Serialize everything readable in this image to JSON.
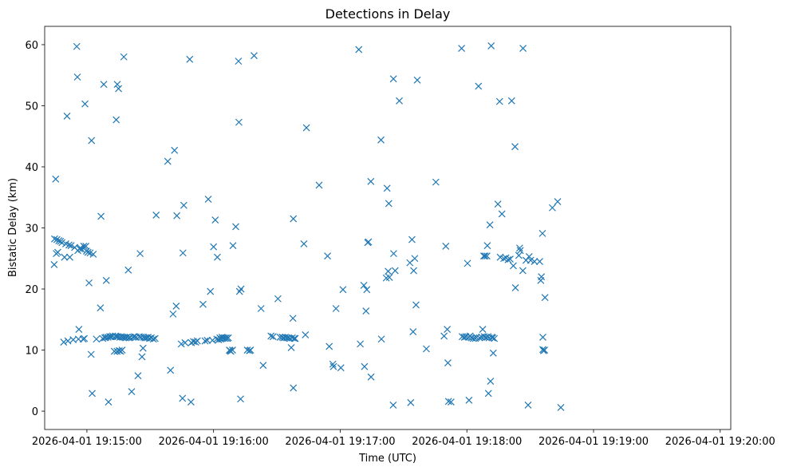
{
  "chart_data": {
    "type": "scatter",
    "title": "Detections in Delay",
    "xlabel": "Time (UTC)",
    "ylabel": "Bistatic Delay (km)",
    "marker": "x",
    "marker_color": "#1f77b4",
    "x_unit": "seconds after 2026-04-01 19:15:00",
    "xlim": [
      -20,
      305
    ],
    "ylim": [
      -3,
      63
    ],
    "xticks": [
      {
        "value": 0,
        "label": "2026-04-01 19:15:00"
      },
      {
        "value": 60,
        "label": "2026-04-01 19:16:00"
      },
      {
        "value": 120,
        "label": "2026-04-01 19:17:00"
      },
      {
        "value": 180,
        "label": "2026-04-01 19:18:00"
      },
      {
        "value": 240,
        "label": "2026-04-01 19:19:00"
      },
      {
        "value": 300,
        "label": "2026-04-01 19:20:00"
      }
    ],
    "yticks": [
      {
        "value": 0,
        "label": "0"
      },
      {
        "value": 10,
        "label": "10"
      },
      {
        "value": 20,
        "label": "20"
      },
      {
        "value": 30,
        "label": "30"
      },
      {
        "value": 40,
        "label": "40"
      },
      {
        "value": 50,
        "label": "50"
      },
      {
        "value": 60,
        "label": "60"
      }
    ],
    "points": [
      [
        -15.5,
        24
      ],
      [
        -15.3,
        28.2
      ],
      [
        -14.8,
        38
      ],
      [
        -14.5,
        25.8
      ],
      [
        -14.2,
        28.1
      ],
      [
        -13.8,
        26
      ],
      [
        -13.3,
        27.9
      ],
      [
        -12.5,
        27.8
      ],
      [
        -11.8,
        27.6
      ],
      [
        -11,
        11.3
      ],
      [
        -10.6,
        25.2
      ],
      [
        -10,
        27.4
      ],
      [
        -9.4,
        48.3
      ],
      [
        -9,
        11.5
      ],
      [
        -8.5,
        27.2
      ],
      [
        -8.1,
        25.2
      ],
      [
        -7.5,
        27.1
      ],
      [
        -6.5,
        11.7
      ],
      [
        -5.8,
        26.8
      ],
      [
        -4.8,
        59.7
      ],
      [
        -4.5,
        54.7
      ],
      [
        -4.3,
        26.3
      ],
      [
        -4,
        11.8
      ],
      [
        -3.8,
        13.4
      ],
      [
        -3.5,
        26.6
      ],
      [
        -3,
        26.7
      ],
      [
        -2.5,
        26.5
      ],
      [
        -1.8,
        11.8
      ],
      [
        -1.5,
        27
      ],
      [
        -1.2,
        11.9
      ],
      [
        -0.9,
        50.3
      ],
      [
        -0.5,
        27
      ],
      [
        -0.2,
        26.2
      ],
      [
        0.5,
        26
      ],
      [
        1,
        21
      ],
      [
        1.5,
        25.9
      ],
      [
        2,
        9.3
      ],
      [
        2.2,
        44.3
      ],
      [
        2.5,
        2.9
      ],
      [
        3,
        25.7
      ],
      [
        4.5,
        11.8
      ],
      [
        6.4,
        16.9
      ],
      [
        6.7,
        31.9
      ],
      [
        7.5,
        11.9
      ],
      [
        8,
        53.5
      ],
      [
        8.5,
        12
      ],
      [
        9,
        12.1
      ],
      [
        9.2,
        21.4
      ],
      [
        10,
        12.1
      ],
      [
        10.2,
        1.5
      ],
      [
        10.8,
        12.2
      ],
      [
        11.5,
        12.2
      ],
      [
        12.2,
        12.3
      ],
      [
        13,
        9.8
      ],
      [
        13.5,
        12.3
      ],
      [
        13.9,
        47.7
      ],
      [
        14,
        12.2
      ],
      [
        14.3,
        9.8
      ],
      [
        14.4,
        53.5
      ],
      [
        14.7,
        12.2
      ],
      [
        15,
        52.8
      ],
      [
        15.3,
        9.9
      ],
      [
        15.6,
        12.1
      ],
      [
        16,
        9.8
      ],
      [
        16.3,
        12.2
      ],
      [
        16.7,
        10
      ],
      [
        17,
        12.1
      ],
      [
        17.5,
        58
      ],
      [
        17.8,
        12.1
      ],
      [
        18.4,
        12
      ],
      [
        19,
        12.1
      ],
      [
        19.6,
        23.1
      ],
      [
        20,
        12
      ],
      [
        20.5,
        12.1
      ],
      [
        21.2,
        3.2
      ],
      [
        21.8,
        12.1
      ],
      [
        22.5,
        12.2
      ],
      [
        23.3,
        12.1
      ],
      [
        24.2,
        5.8
      ],
      [
        24.8,
        12.2
      ],
      [
        25.2,
        25.8
      ],
      [
        25.6,
        12.1
      ],
      [
        26.1,
        8.9
      ],
      [
        26.6,
        10.3
      ],
      [
        26.8,
        12.1
      ],
      [
        27.5,
        12
      ],
      [
        28.3,
        12
      ],
      [
        29,
        12.1
      ],
      [
        29.7,
        11.9
      ],
      [
        30.5,
        12
      ],
      [
        31.5,
        11.8
      ],
      [
        32.3,
        11.9
      ],
      [
        32.8,
        32.1
      ],
      [
        38.3,
        40.9
      ],
      [
        39.6,
        6.7
      ],
      [
        40.8,
        15.9
      ],
      [
        41.5,
        42.7
      ],
      [
        42.3,
        17.2
      ],
      [
        42.6,
        32
      ],
      [
        44.7,
        11
      ],
      [
        45.3,
        2.1
      ],
      [
        45.5,
        25.9
      ],
      [
        45.9,
        33.7
      ],
      [
        46.5,
        11.2
      ],
      [
        48.7,
        57.6
      ],
      [
        49.3,
        1.5
      ],
      [
        49.5,
        11.2
      ],
      [
        50.5,
        11.4
      ],
      [
        51.5,
        11.3
      ],
      [
        52.3,
        11.5
      ],
      [
        55,
        17.5
      ],
      [
        56,
        11.5
      ],
      [
        57,
        11.6
      ],
      [
        57.5,
        34.7
      ],
      [
        58.5,
        19.6
      ],
      [
        59.5,
        11.6
      ],
      [
        60,
        26.9
      ],
      [
        60.8,
        31.3
      ],
      [
        61.5,
        11.8
      ],
      [
        61.8,
        25.2
      ],
      [
        62.4,
        11.7
      ],
      [
        63,
        12
      ],
      [
        63.4,
        11.8
      ],
      [
        64,
        12.1
      ],
      [
        64.4,
        11.9
      ],
      [
        65,
        12
      ],
      [
        65.5,
        11.9
      ],
      [
        66,
        12
      ],
      [
        66.5,
        11.9
      ],
      [
        67,
        12
      ],
      [
        67.5,
        10
      ],
      [
        67.8,
        9.9
      ],
      [
        68.2,
        9.8
      ],
      [
        69,
        10
      ],
      [
        69.2,
        27.1
      ],
      [
        70.5,
        30.2
      ],
      [
        71.8,
        57.3
      ],
      [
        72,
        47.3
      ],
      [
        72.3,
        19.6
      ],
      [
        72.8,
        2
      ],
      [
        73,
        20
      ],
      [
        76,
        10
      ],
      [
        77,
        9.9
      ],
      [
        77.5,
        10
      ],
      [
        79.2,
        58.2
      ],
      [
        82.5,
        16.8
      ],
      [
        83.5,
        7.5
      ],
      [
        87.2,
        12.3
      ],
      [
        88.2,
        12.2
      ],
      [
        90.5,
        18.4
      ],
      [
        91.5,
        12.1
      ],
      [
        92.5,
        12.1
      ],
      [
        93.2,
        12
      ],
      [
        94,
        12.1
      ],
      [
        94.7,
        12
      ],
      [
        95.5,
        12
      ],
      [
        96.2,
        11.9
      ],
      [
        96.8,
        10.4
      ],
      [
        97.3,
        12
      ],
      [
        97.6,
        15.2
      ],
      [
        97.8,
        31.5
      ],
      [
        97.8,
        3.8
      ],
      [
        98.2,
        11.9
      ],
      [
        98.7,
        11.9
      ],
      [
        102.8,
        27.4
      ],
      [
        103.5,
        12.5
      ],
      [
        104,
        46.4
      ],
      [
        110,
        37
      ],
      [
        114,
        25.4
      ],
      [
        114.8,
        10.6
      ],
      [
        116.5,
        7.7
      ],
      [
        116.8,
        7.3
      ],
      [
        118,
        16.8
      ],
      [
        120.3,
        7.1
      ],
      [
        121.3,
        19.9
      ],
      [
        128.8,
        59.2
      ],
      [
        129.5,
        11
      ],
      [
        131.2,
        20.6
      ],
      [
        131.5,
        7.3
      ],
      [
        132.2,
        16.4
      ],
      [
        132.6,
        19.9
      ],
      [
        133,
        27.6
      ],
      [
        133.4,
        27.7
      ],
      [
        134.5,
        37.6
      ],
      [
        134.6,
        5.6
      ],
      [
        139.3,
        44.4
      ],
      [
        139.5,
        11.8
      ],
      [
        141.8,
        21.8
      ],
      [
        142.2,
        36.5
      ],
      [
        142.7,
        22.9
      ],
      [
        143,
        34
      ],
      [
        143.3,
        21.9
      ],
      [
        145.1,
        1
      ],
      [
        145.2,
        54.4
      ],
      [
        145.3,
        25.8
      ],
      [
        146,
        23
      ],
      [
        148,
        50.8
      ],
      [
        153,
        24.3
      ],
      [
        153.4,
        1.4
      ],
      [
        154,
        28.1
      ],
      [
        154.5,
        13
      ],
      [
        154.8,
        23
      ],
      [
        155.3,
        25
      ],
      [
        155.9,
        17.4
      ],
      [
        156.5,
        54.2
      ],
      [
        160.8,
        10.2
      ],
      [
        165.3,
        37.5
      ],
      [
        169.2,
        12.3
      ],
      [
        170,
        27
      ],
      [
        170.7,
        13.4
      ],
      [
        171,
        7.9
      ],
      [
        171.3,
        1.6
      ],
      [
        172.5,
        1.5
      ],
      [
        177.5,
        59.4
      ],
      [
        177.8,
        12.2
      ],
      [
        178.8,
        12.1
      ],
      [
        179.5,
        12.2
      ],
      [
        180.3,
        24.2
      ],
      [
        180.8,
        12.1
      ],
      [
        181,
        1.8
      ],
      [
        181.5,
        12.3
      ],
      [
        182.2,
        12
      ],
      [
        183,
        11.9
      ],
      [
        184,
        11.9
      ],
      [
        184.5,
        12.1
      ],
      [
        185.5,
        53.2
      ],
      [
        186,
        12
      ],
      [
        187,
        12.1
      ],
      [
        187.5,
        13.4
      ],
      [
        188,
        25.4
      ],
      [
        188.2,
        12.2
      ],
      [
        188.6,
        25.4
      ],
      [
        189,
        12.1
      ],
      [
        189.5,
        25.4
      ],
      [
        189.7,
        27.1
      ],
      [
        190,
        12.2
      ],
      [
        190.2,
        2.9
      ],
      [
        190.5,
        12
      ],
      [
        190.9,
        30.5
      ],
      [
        191.2,
        4.9
      ],
      [
        191.5,
        59.8
      ],
      [
        191.8,
        12.1
      ],
      [
        192.2,
        12
      ],
      [
        192.5,
        9.5
      ],
      [
        193,
        11.9
      ],
      [
        194.7,
        33.9
      ],
      [
        195.5,
        50.7
      ],
      [
        195.8,
        25.2
      ],
      [
        196.6,
        32.3
      ],
      [
        197.5,
        25
      ],
      [
        198.5,
        25.1
      ],
      [
        199.5,
        24.8
      ],
      [
        200.5,
        24.9
      ],
      [
        201.2,
        50.8
      ],
      [
        202,
        23.8
      ],
      [
        202.8,
        43.3
      ],
      [
        203,
        20.2
      ],
      [
        204.6,
        25.5
      ],
      [
        205,
        26.7
      ],
      [
        205.3,
        26.3
      ],
      [
        206.5,
        23
      ],
      [
        206.6,
        59.4
      ],
      [
        208,
        24.7
      ],
      [
        209,
        1
      ],
      [
        209.5,
        25.3
      ],
      [
        210.2,
        24.7
      ],
      [
        212,
        24.5
      ],
      [
        214.5,
        24.5
      ],
      [
        215,
        21.4
      ],
      [
        215.3,
        22
      ],
      [
        215.8,
        29.1
      ],
      [
        216,
        12.1
      ],
      [
        216,
        10.1
      ],
      [
        216.3,
        9.9
      ],
      [
        216.8,
        10
      ],
      [
        217,
        18.6
      ],
      [
        220.5,
        33.3
      ],
      [
        223,
        34.3
      ],
      [
        224.5,
        0.6
      ]
    ]
  }
}
